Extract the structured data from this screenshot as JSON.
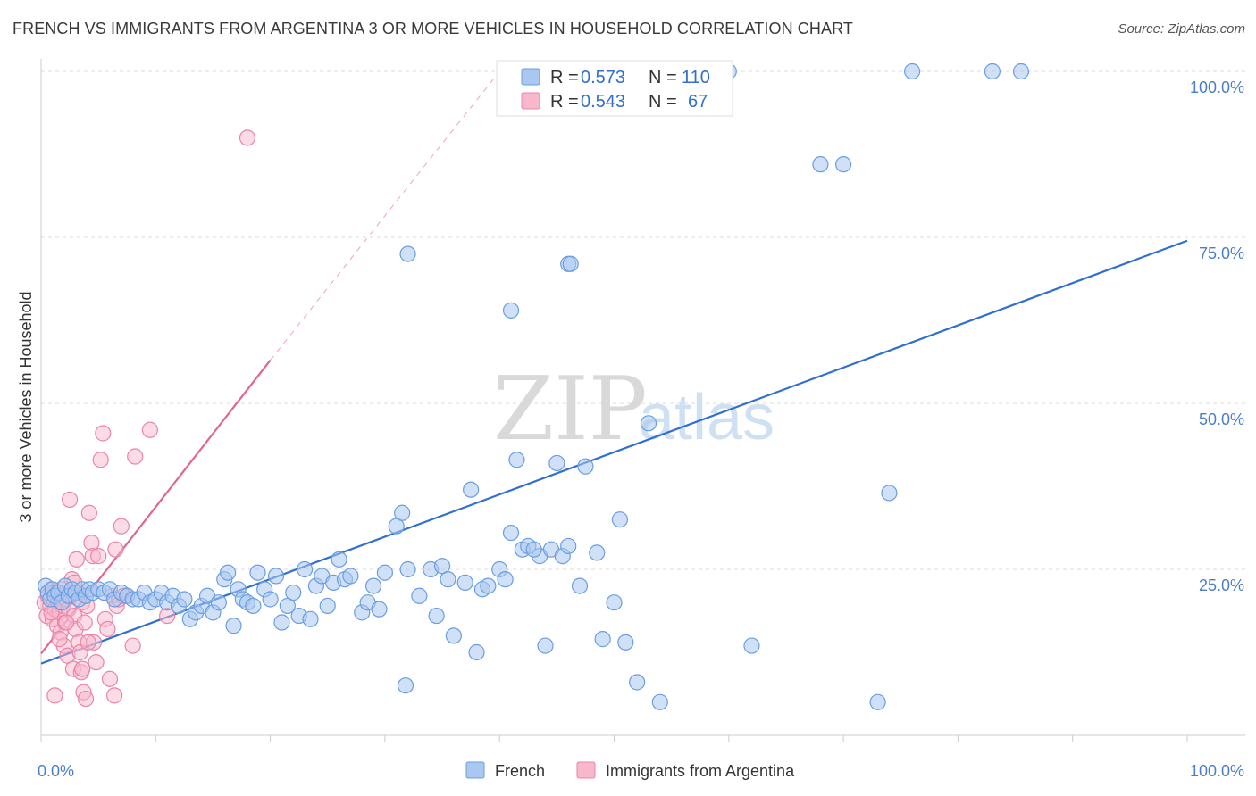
{
  "title": "FRENCH VS IMMIGRANTS FROM ARGENTINA 3 OR MORE VEHICLES IN HOUSEHOLD CORRELATION CHART",
  "source": "Source: ZipAtlas.com",
  "watermark": {
    "zip": "ZIP",
    "atlas": "atlas"
  },
  "colors": {
    "french_fill": "#a9c7f0",
    "french_stroke": "#6a9ee0",
    "french_line": "#2f6fd0",
    "arg_fill": "#f7b8cc",
    "arg_stroke": "#ea85a6",
    "arg_line": "#e06692",
    "grid": "#dcdcdc",
    "axis_text": "#4a7ec8"
  },
  "legend": {
    "rows": [
      {
        "r_label": "R =",
        "r_value": "0.573",
        "n_label": "N =",
        "n_value": "110"
      },
      {
        "r_label": "R =",
        "r_value": "0.543",
        "n_label": "N =",
        "n_value": "67"
      }
    ]
  },
  "chart_data": {
    "type": "scatter",
    "title": "FRENCH VS IMMIGRANTS FROM ARGENTINA 3 OR MORE VEHICLES IN HOUSEHOLD CORRELATION CHART",
    "xlabel": "",
    "ylabel": "3 or more Vehicles in Household",
    "xlim": [
      0,
      100
    ],
    "ylim": [
      0,
      100
    ],
    "x_tick_labels": [
      "0.0%",
      "100.0%"
    ],
    "y_tick_labels": [
      "25.0%",
      "50.0%",
      "75.0%",
      "100.0%"
    ],
    "y_ticks": [
      25,
      50,
      75,
      100
    ],
    "grid": true,
    "legend_position": "top-center",
    "series": [
      {
        "name": "French",
        "r": 0.573,
        "n": 110,
        "trend": {
          "x0": 0,
          "y0": 10.8,
          "x1": 100,
          "y1": 74.5
        },
        "points": [
          [
            0.4,
            22.5
          ],
          [
            0.6,
            21.5
          ],
          [
            0.8,
            20.5
          ],
          [
            1.0,
            22
          ],
          [
            1.2,
            21
          ],
          [
            1.5,
            21.5
          ],
          [
            1.8,
            20
          ],
          [
            2.1,
            22.5
          ],
          [
            2.4,
            21
          ],
          [
            2.7,
            22
          ],
          [
            3.0,
            21.5
          ],
          [
            3.3,
            20.5
          ],
          [
            3.6,
            22
          ],
          [
            3.9,
            21
          ],
          [
            4.2,
            22
          ],
          [
            4.5,
            21.5
          ],
          [
            5.0,
            22
          ],
          [
            5.5,
            21.5
          ],
          [
            6.0,
            22
          ],
          [
            6.4,
            20.5
          ],
          [
            7.0,
            21.5
          ],
          [
            7.5,
            21
          ],
          [
            8.0,
            20.5
          ],
          [
            8.5,
            20.5
          ],
          [
            9.0,
            21.5
          ],
          [
            9.5,
            20
          ],
          [
            10.0,
            20.5
          ],
          [
            10.5,
            21.5
          ],
          [
            11.0,
            20
          ],
          [
            11.5,
            21
          ],
          [
            12.0,
            19.5
          ],
          [
            12.5,
            20.5
          ],
          [
            13.0,
            17.5
          ],
          [
            13.5,
            18.5
          ],
          [
            14.0,
            19.5
          ],
          [
            14.5,
            21
          ],
          [
            15.0,
            18.5
          ],
          [
            15.5,
            20
          ],
          [
            16.0,
            23.5
          ],
          [
            16.3,
            24.5
          ],
          [
            16.8,
            16.5
          ],
          [
            17.2,
            22
          ],
          [
            17.6,
            20.5
          ],
          [
            18.0,
            20
          ],
          [
            18.5,
            19.5
          ],
          [
            18.9,
            24.5
          ],
          [
            19.5,
            22
          ],
          [
            20.0,
            20.5
          ],
          [
            20.5,
            24
          ],
          [
            21.0,
            17
          ],
          [
            21.5,
            19.5
          ],
          [
            22.0,
            21.5
          ],
          [
            22.5,
            18
          ],
          [
            23.0,
            25
          ],
          [
            23.5,
            17.5
          ],
          [
            24.0,
            22.5
          ],
          [
            24.5,
            24
          ],
          [
            25.0,
            19.5
          ],
          [
            25.5,
            23
          ],
          [
            26.0,
            26.5
          ],
          [
            26.5,
            23.5
          ],
          [
            27.0,
            24
          ],
          [
            28.0,
            18.5
          ],
          [
            28.5,
            20
          ],
          [
            29.0,
            22.5
          ],
          [
            29.5,
            19
          ],
          [
            30.0,
            24.5
          ],
          [
            31.0,
            31.5
          ],
          [
            31.5,
            33.5
          ],
          [
            32.0,
            25
          ],
          [
            31.8,
            7.5
          ],
          [
            33.0,
            21
          ],
          [
            34.0,
            25
          ],
          [
            34.5,
            18
          ],
          [
            35.0,
            25.5
          ],
          [
            35.5,
            23.5
          ],
          [
            36.0,
            15
          ],
          [
            37.0,
            23
          ],
          [
            38.0,
            12.5
          ],
          [
            37.5,
            37
          ],
          [
            38.5,
            22
          ],
          [
            39.0,
            22.5
          ],
          [
            40.0,
            25
          ],
          [
            40.5,
            23.5
          ],
          [
            41.0,
            30.5
          ],
          [
            41.5,
            41.5
          ],
          [
            42.0,
            28
          ],
          [
            42.5,
            28.5
          ],
          [
            43.5,
            27
          ],
          [
            44.0,
            13.5
          ],
          [
            43.0,
            28
          ],
          [
            44.5,
            28
          ],
          [
            45.0,
            41
          ],
          [
            45.5,
            27
          ],
          [
            46.0,
            28.5
          ],
          [
            47.0,
            22.5
          ],
          [
            47.5,
            40.5
          ],
          [
            48.5,
            27.5
          ],
          [
            49.0,
            14.5
          ],
          [
            50.0,
            20
          ],
          [
            50.5,
            32.5
          ],
          [
            51.0,
            14
          ],
          [
            52.0,
            8
          ],
          [
            53.0,
            47
          ],
          [
            54.0,
            5
          ],
          [
            62.0,
            13.5
          ],
          [
            73.0,
            5
          ],
          [
            74.0,
            36.5
          ],
          [
            32.0,
            72.5
          ],
          [
            41.0,
            64
          ]
        ],
        "extra_points": [
          [
            46.0,
            71
          ],
          [
            46.2,
            71
          ],
          [
            68.0,
            86
          ],
          [
            70.0,
            86
          ],
          [
            55.0,
            100
          ],
          [
            60.0,
            100
          ],
          [
            76.0,
            100
          ],
          [
            83.0,
            100
          ],
          [
            85.5,
            100
          ],
          [
            48.5,
            100
          ]
        ]
      },
      {
        "name": "Immigrants from Argentina",
        "r": 0.543,
        "n": 67,
        "trend": {
          "x0": 0,
          "y0": 12.3,
          "x1": 20,
          "y1": 56.5
        },
        "trend_extension": {
          "x0": 20,
          "y0": 56.5,
          "x1": 40,
          "y1": 100
        },
        "points": [
          [
            0.3,
            20
          ],
          [
            0.5,
            18
          ],
          [
            0.6,
            21
          ],
          [
            0.8,
            19.5
          ],
          [
            0.9,
            22
          ],
          [
            1.0,
            17.5
          ],
          [
            1.1,
            20.5
          ],
          [
            1.2,
            19
          ],
          [
            1.3,
            21.5
          ],
          [
            1.4,
            16.5
          ],
          [
            1.5,
            20
          ],
          [
            1.6,
            18.5
          ],
          [
            1.7,
            15.5
          ],
          [
            1.8,
            22
          ],
          [
            1.9,
            19.5
          ],
          [
            2.0,
            13.5
          ],
          [
            2.1,
            17
          ],
          [
            2.2,
            20.5
          ],
          [
            2.3,
            12
          ],
          [
            2.4,
            19
          ],
          [
            2.5,
            35.5
          ],
          [
            2.6,
            21
          ],
          [
            2.7,
            23.5
          ],
          [
            2.8,
            10
          ],
          [
            2.9,
            18
          ],
          [
            3.0,
            16
          ],
          [
            3.1,
            26.5
          ],
          [
            3.2,
            21.5
          ],
          [
            3.3,
            14
          ],
          [
            3.4,
            12.5
          ],
          [
            3.5,
            9.5
          ],
          [
            3.6,
            20
          ],
          [
            3.7,
            6.5
          ],
          [
            3.8,
            17
          ],
          [
            3.9,
            5.5
          ],
          [
            4.0,
            19.5
          ],
          [
            4.2,
            33.5
          ],
          [
            4.4,
            29
          ],
          [
            4.5,
            27
          ],
          [
            4.6,
            14
          ],
          [
            4.8,
            11
          ],
          [
            5.0,
            27
          ],
          [
            5.2,
            41.5
          ],
          [
            5.4,
            45.5
          ],
          [
            5.6,
            17.5
          ],
          [
            5.8,
            16
          ],
          [
            6.0,
            8.5
          ],
          [
            6.2,
            21
          ],
          [
            6.4,
            6
          ],
          [
            6.5,
            28
          ],
          [
            6.6,
            19.5
          ],
          [
            6.8,
            20.5
          ],
          [
            7.0,
            31.5
          ],
          [
            7.2,
            21
          ],
          [
            7.5,
            21
          ],
          [
            8.0,
            13.5
          ],
          [
            8.2,
            42
          ],
          [
            9.5,
            46
          ],
          [
            11.0,
            18
          ],
          [
            18.0,
            90
          ],
          [
            1.2,
            6
          ],
          [
            2.2,
            17
          ],
          [
            3.6,
            10
          ],
          [
            4.1,
            14
          ],
          [
            0.9,
            18.5
          ],
          [
            1.6,
            14.5
          ],
          [
            2.9,
            23
          ]
        ]
      }
    ]
  },
  "bottom_legend": [
    {
      "label": "French"
    },
    {
      "label": "Immigrants from Argentina"
    }
  ]
}
